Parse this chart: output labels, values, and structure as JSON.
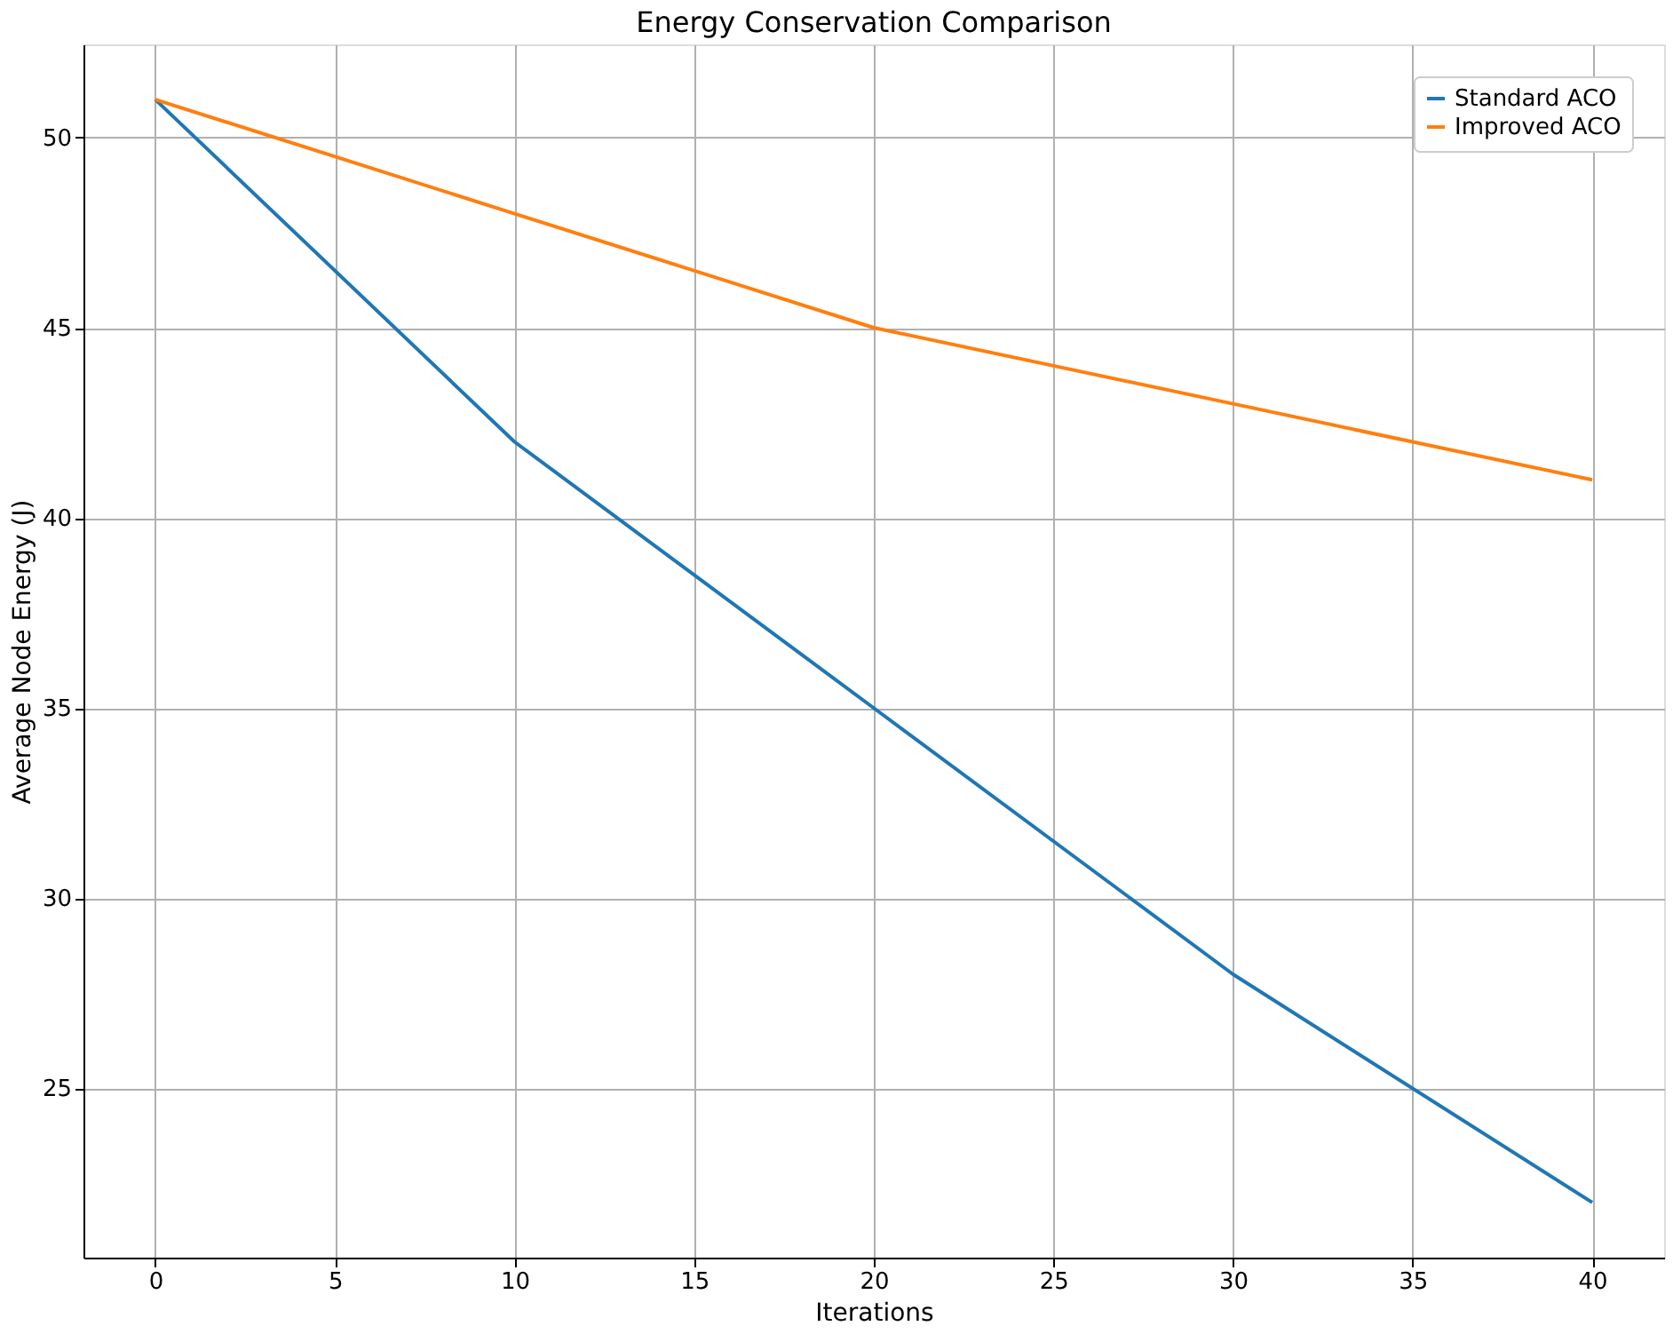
{
  "chart_data": {
    "type": "line",
    "title": "Energy Conservation Comparison",
    "xlabel": "Iterations",
    "ylabel": "Average Node Energy (J)",
    "x": [
      0,
      10,
      20,
      30,
      40
    ],
    "series": [
      {
        "name": "Standard ACO",
        "color": "#1f77b4",
        "values": [
          51,
          42,
          35,
          28,
          22
        ]
      },
      {
        "name": "Improved ACO",
        "color": "#ff7f0e",
        "values": [
          51,
          48,
          45,
          43,
          41
        ]
      }
    ],
    "xlim": [
      -2,
      42
    ],
    "xticks": [
      0,
      5,
      10,
      15,
      20,
      25,
      30,
      35,
      40
    ],
    "ylim": [
      20.55,
      52.45
    ],
    "yticks": [
      25,
      30,
      35,
      40,
      45,
      50
    ],
    "grid": true,
    "legend": "top right",
    "marker": "none",
    "line_style": "solid"
  }
}
